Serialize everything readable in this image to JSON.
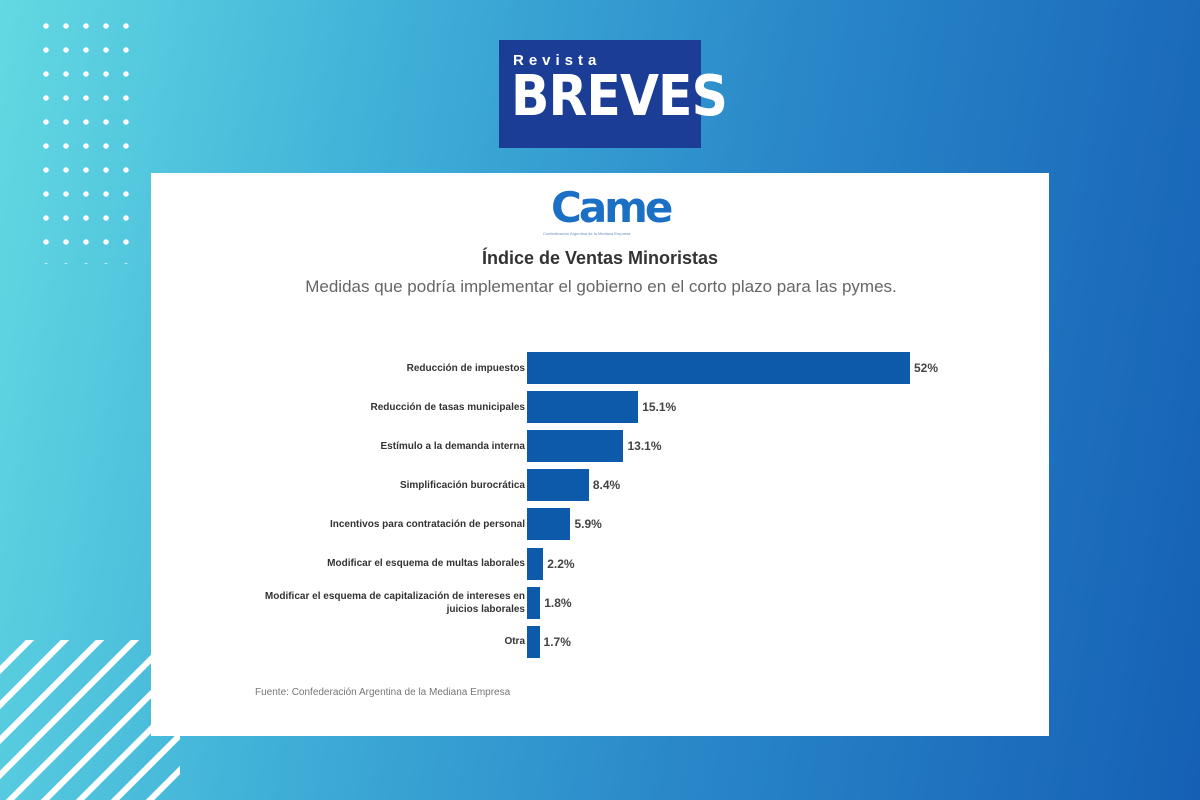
{
  "brand": {
    "logo_small": "Revista",
    "logo_big": "BREVES"
  },
  "came_logo": {
    "text": "Came",
    "tagline": "Confederación Argentina de la Mediana Empresa"
  },
  "chart_data": {
    "type": "bar",
    "orientation": "horizontal",
    "title": "Índice de Ventas Minoristas",
    "subtitle": "Medidas que podría implementar el gobierno en el corto plazo para las pymes.",
    "categories": [
      "Reducción de impuestos",
      "Reducción de tasas municipales",
      "Estímulo a la demanda interna",
      "Simplificación burocrática",
      "Incentivos para contratación de personal",
      "Modificar el esquema de multas laborales",
      "Modificar el esquema de capitalización de intereses en juicios laborales",
      "Otra"
    ],
    "values": [
      52,
      15.1,
      13.1,
      8.4,
      5.9,
      2.2,
      1.8,
      1.7
    ],
    "labels": [
      "52%",
      "15.1%",
      "13.1%",
      "8.4%",
      "5.9%",
      "2.2%",
      "1.8%",
      "1.7%"
    ],
    "color": "#0d5aaa",
    "grid": false,
    "source": "Fuente: Confederación Argentina de la Mediana Empresa"
  }
}
